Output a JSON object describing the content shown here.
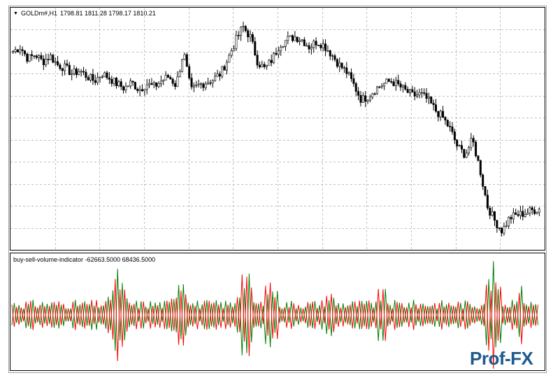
{
  "window": {
    "symbol_title": "GOLDm#,H1",
    "ohlc_readout": "1798.81 1811.28 1798.17 1810.21",
    "menu_arrow": "triangle-down-icon"
  },
  "indicator": {
    "name": "buy-sell-volume-indicator",
    "values_readout": "-62663.5000 68436.5000"
  },
  "watermark": {
    "text": "Prof-FX",
    "color": "#1e5a8f"
  },
  "colors": {
    "candle_bull": "#ffffff",
    "candle_bear": "#000000",
    "grid": "#c0c0c0",
    "buy_line": "#008000",
    "sell_line": "#ff0000"
  },
  "chart_data": {
    "type": "candlestick+line",
    "instrument": "GOLDm#",
    "timeframe": "H1",
    "price_series_approx": [
      1805,
      1808,
      1800,
      1803,
      1798,
      1802,
      1796,
      1794,
      1790,
      1792,
      1788,
      1785,
      1790,
      1787,
      1783,
      1780,
      1784,
      1779,
      1783,
      1781,
      1785,
      1788,
      1782,
      1805,
      1778,
      1782,
      1784,
      1786,
      1790,
      1800,
      1812,
      1822,
      1815,
      1798,
      1793,
      1800,
      1810,
      1813,
      1815,
      1813,
      1808,
      1812,
      1809,
      1803,
      1796,
      1791,
      1782,
      1772,
      1775,
      1780,
      1783,
      1785,
      1782,
      1778,
      1775,
      1776,
      1772,
      1765,
      1760,
      1752,
      1740,
      1735,
      1745,
      1725,
      1700,
      1690,
      1683,
      1692,
      1694,
      1695,
      1697,
      1698
    ],
    "indicator_series": [
      {
        "name": "buy",
        "color": "#008000"
      },
      {
        "name": "sell",
        "color": "#ff0000"
      }
    ],
    "indicator_range": [
      -62663.5,
      68436.5
    ],
    "grid": true
  }
}
